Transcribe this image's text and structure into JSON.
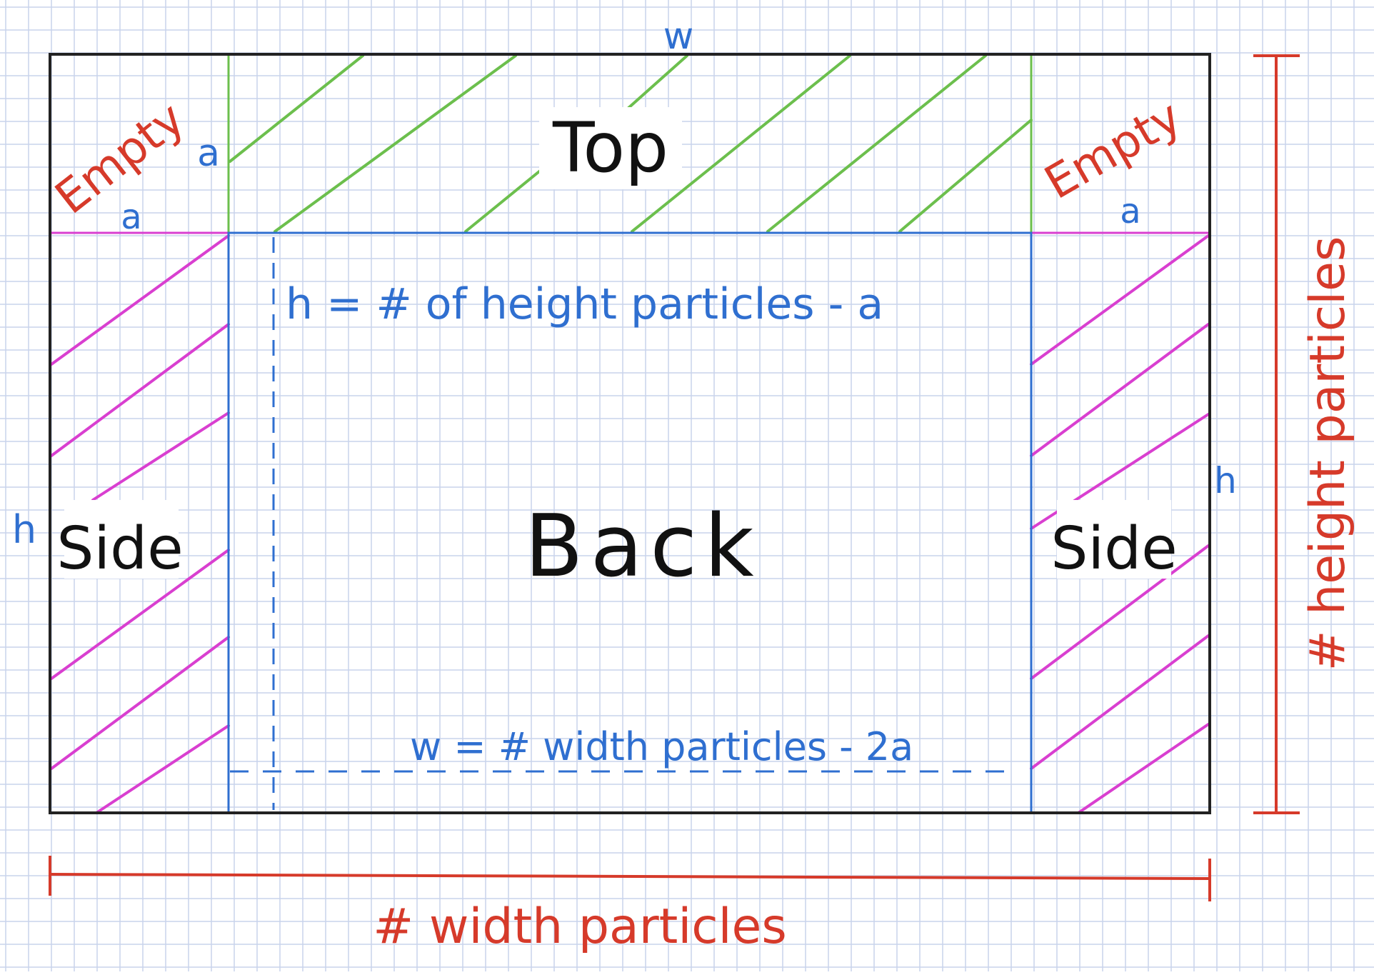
{
  "colors": {
    "grid": "#c9d3ec",
    "outline": "#222222",
    "top_hatch": "#6cbf4d",
    "side_hatch": "#d93fd0",
    "back_outline": "#2f6fd0",
    "dimension": "#d63a2a",
    "label_blue": "#2f6fd0",
    "label_black": "#111111"
  },
  "regions": {
    "top": "Top",
    "back": "Back",
    "side_left": "Side",
    "side_right": "Side",
    "empty_left": "Empty",
    "empty_right": "Empty"
  },
  "labels": {
    "w_top": "w",
    "a_top_left": "a",
    "a_left": "a",
    "a_right": "a",
    "h_left": "h",
    "h_right": "h",
    "h_formula": "h = # of height particles - a",
    "w_formula": "w = # width particles - 2a",
    "width_dimension": "# width particles",
    "height_dimension": "# height particles"
  }
}
